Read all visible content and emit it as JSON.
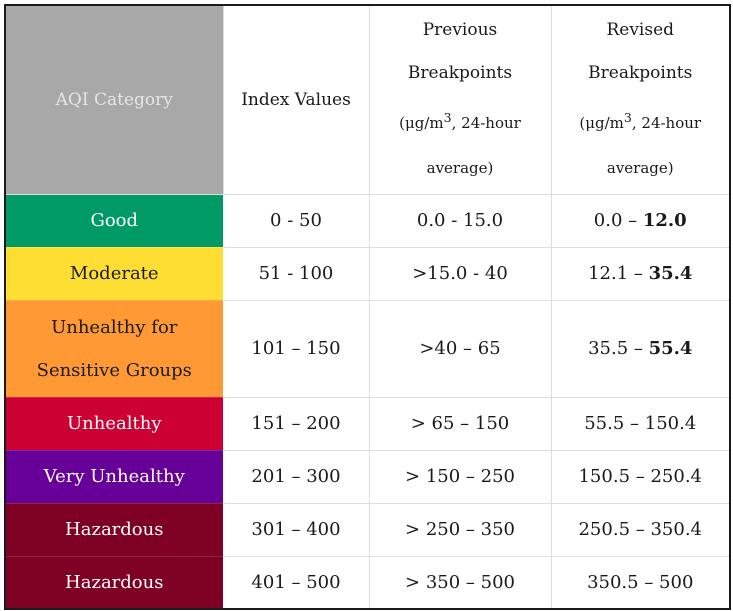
{
  "headers": {
    "category": "AQI Category",
    "index": "Index Values",
    "previous_l1": "Previous",
    "previous_l2": "Breakpoints",
    "previous_unit": "(μg/m",
    "previous_unit_sup": "3",
    "previous_unit_rest": ", 24-hour",
    "previous_l4": "average)",
    "revised_l1": "Revised",
    "revised_l2": "Breakpoints",
    "revised_unit": "(μg/m",
    "revised_unit_sup": "3",
    "revised_unit_rest": ", 24-hour",
    "revised_l4": "average)"
  },
  "rows": [
    {
      "category": "Good",
      "index": "0 - 50",
      "previous": "0.0 - 15.0",
      "revised_start": "0.0 – ",
      "revised_end": "12.0",
      "bg": "#009a66",
      "fg": "#ffffff"
    },
    {
      "category": "Moderate",
      "index": "51 - 100",
      "previous": ">15.0 - 40",
      "revised_start": "12.1 – ",
      "revised_end": "35.4",
      "bg": "#ffde33",
      "fg": "#1a1a1a"
    },
    {
      "category_l1": "Unhealthy for",
      "category_l2": "Sensitive Groups",
      "index": "101 – 150",
      "previous": ">40 – 65",
      "revised_start": "35.5 – ",
      "revised_end": "55.4",
      "bg": "#ff9933",
      "fg": "#1a1a1a"
    },
    {
      "category": "Unhealthy",
      "index": "151 – 200",
      "previous": "> 65 – 150",
      "revised": "55.5 – 150.4",
      "bg": "#cc0033",
      "fg": "#ffffff"
    },
    {
      "category": "Very Unhealthy",
      "index": "201 – 300",
      "previous": "> 150 – 250",
      "revised": "150.5 – 250.4",
      "bg": "#660099",
      "fg": "#ffffff"
    },
    {
      "category": "Hazardous",
      "index": "301 – 400",
      "previous": "> 250 – 350",
      "revised": "250.5 – 350.4",
      "bg": "#7e0023",
      "fg": "#ffffff"
    },
    {
      "category": "Hazardous",
      "index": "401 – 500",
      "previous": "> 350 – 500",
      "revised": "350.5 – 500",
      "bg": "#7e0023",
      "fg": "#ffffff"
    }
  ]
}
